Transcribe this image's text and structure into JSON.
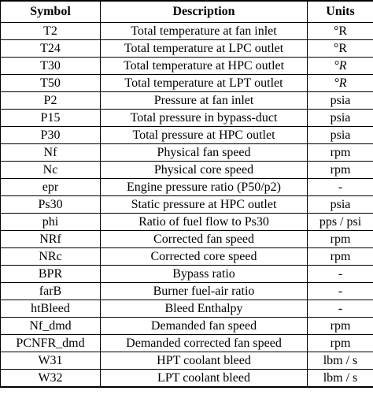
{
  "table": {
    "headers": {
      "symbol": "Symbol",
      "description": "Description",
      "units": "Units"
    },
    "rows": [
      {
        "symbol": "T2",
        "description": "Total temperature at fan inlet",
        "units": "°R"
      },
      {
        "symbol": "T24",
        "description": "Total temperature at LPC outlet",
        "units": "°R"
      },
      {
        "symbol": "T30",
        "description": "Total temperature at HPC outlet",
        "units": "°R"
      },
      {
        "symbol": "T50",
        "description": "Total temperature at LPT outlet",
        "units": "°R"
      },
      {
        "symbol": "P2",
        "description": "Pressure at fan inlet",
        "units": "psia"
      },
      {
        "symbol": "P15",
        "description": "Total pressure in bypass-duct",
        "units": "psia"
      },
      {
        "symbol": "P30",
        "description": "Total pressure at HPC outlet",
        "units": "psia"
      },
      {
        "symbol": "Nf",
        "description": "Physical fan speed",
        "units": "rpm"
      },
      {
        "symbol": "Nc",
        "description": "Physical core speed",
        "units": "rpm"
      },
      {
        "symbol": "epr",
        "description": "Engine pressure ratio (P50/p2)",
        "units": "-"
      },
      {
        "symbol": "Ps30",
        "description": "Static pressure at HPC outlet",
        "units": "psia"
      },
      {
        "symbol": "phi",
        "description": "Ratio of fuel flow to Ps30",
        "units": "pps / psi"
      },
      {
        "symbol": "NRf",
        "description": "Corrected fan speed",
        "units": "rpm"
      },
      {
        "symbol": "NRc",
        "description": "Corrected core speed",
        "units": "rpm"
      },
      {
        "symbol": "BPR",
        "description": "Bypass ratio",
        "units": "-"
      },
      {
        "symbol": "farB",
        "description": "Burner fuel-air ratio",
        "units": "-"
      },
      {
        "symbol": "htBleed",
        "description": "Bleed Enthalpy",
        "units": "-"
      },
      {
        "symbol": "Nf_dmd",
        "description": "Demanded fan speed",
        "units": "rpm"
      },
      {
        "symbol": "PCNFR_dmd",
        "description": "Demanded corrected fan speed",
        "units": "rpm"
      },
      {
        "symbol": "W31",
        "description": "HPT coolant bleed",
        "units": "lbm / s"
      },
      {
        "symbol": "W32",
        "description": "LPT coolant bleed",
        "units": "lbm / s"
      }
    ]
  }
}
